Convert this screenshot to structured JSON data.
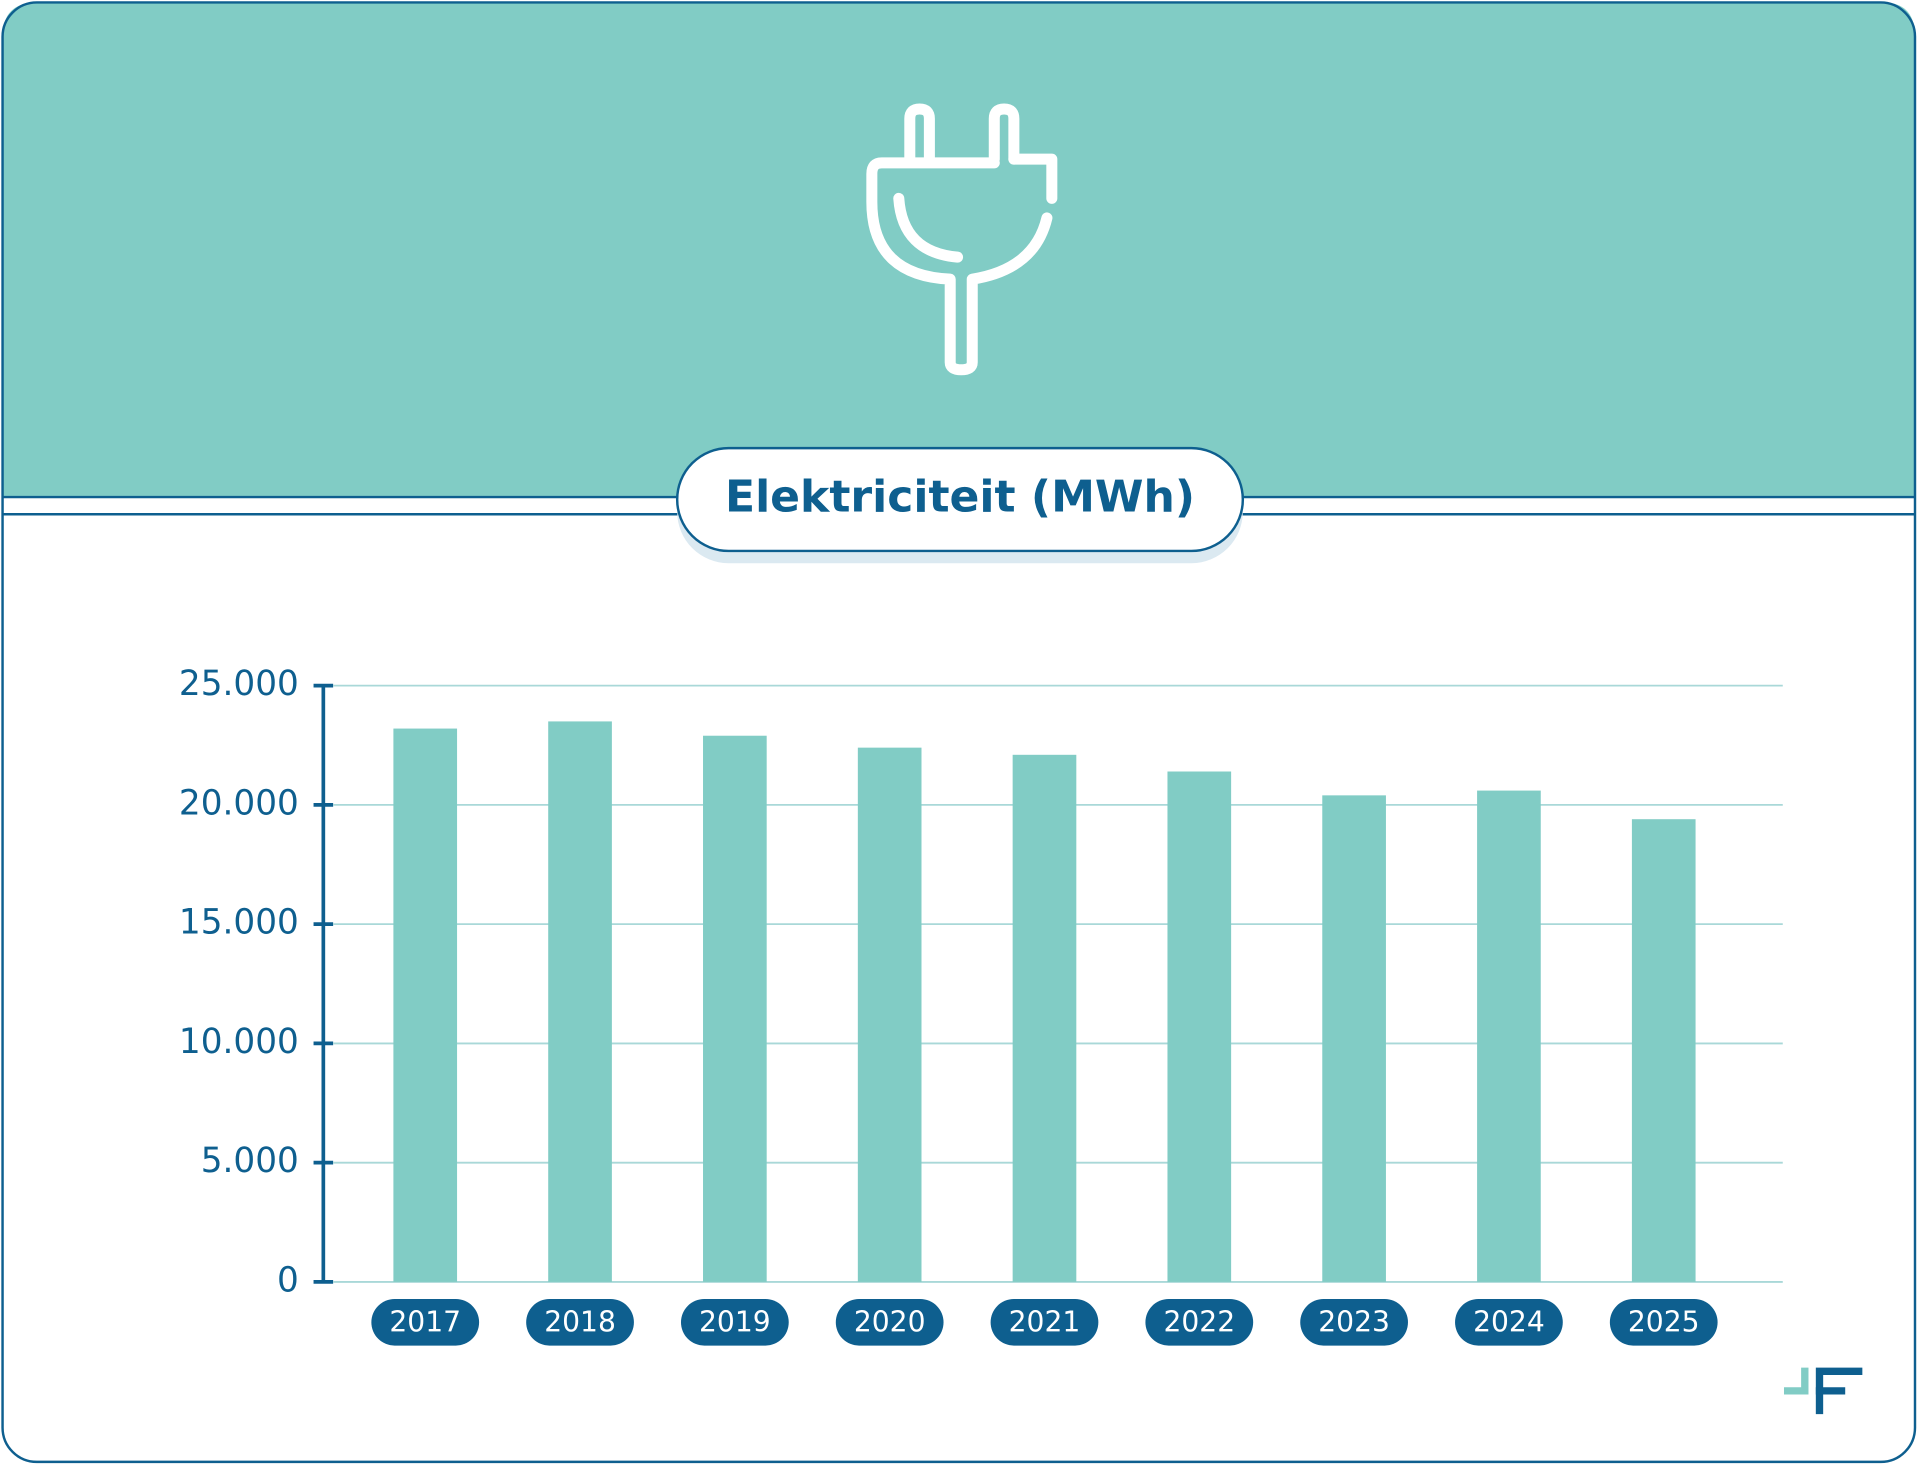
{
  "chart_data": {
    "type": "bar",
    "title": "Elektriciteit (MWh)",
    "categories": [
      "2017",
      "2018",
      "2019",
      "2020",
      "2021",
      "2022",
      "2023",
      "2024",
      "2025"
    ],
    "values": [
      23200,
      23500,
      22900,
      22400,
      22100,
      21400,
      20400,
      20600,
      19400
    ],
    "color": "#81ccc5",
    "ylim": [
      0,
      25000
    ],
    "yticks": [
      0,
      {
        "value": 5000,
        "label": "5.000"
      },
      {
        "value": 10000,
        "label": "10.000"
      },
      {
        "value": 15000,
        "label": "15.000"
      },
      {
        "value": 20000,
        "label": "20.000"
      },
      {
        "value": 25000,
        "label": "25.000"
      }
    ],
    "grid": true
  }
}
